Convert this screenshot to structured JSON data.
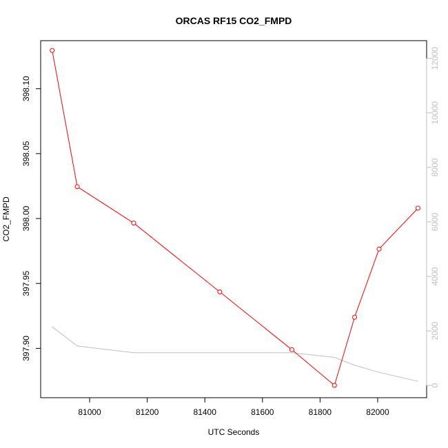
{
  "chart_data": {
    "type": "line",
    "title": "ORCAS RF15 CO2_FMPD",
    "xlabel": "UTC Seconds",
    "ylabel": "CO2_FMPD",
    "xlim": [
      80830,
      82170
    ],
    "ylim": [
      397.862,
      398.137
    ],
    "y2lim": [
      -450,
      12650
    ],
    "x_ticks": [
      81000,
      81200,
      81400,
      81600,
      81800,
      82000
    ],
    "y_ticks": [
      397.9,
      397.95,
      398.0,
      398.05,
      398.1
    ],
    "y_tick_labels": [
      "397.90",
      "397.95",
      "398.00",
      "398.05",
      "398.10"
    ],
    "y2_ticks": [
      0,
      2000,
      4000,
      6000,
      8000,
      10000,
      12000
    ],
    "grid": false,
    "series": [
      {
        "axis": "left",
        "color": "#ff0000",
        "marker": "open-circle",
        "x": [
          80870,
          80957,
          81153,
          81452,
          81702,
          81850,
          81920,
          82005,
          82140
        ],
        "y": [
          398.1295,
          398.0245,
          397.9965,
          397.9435,
          397.899,
          397.8715,
          397.924,
          397.9765,
          398.008
        ]
      },
      {
        "axis": "right",
        "color": "#bebebe",
        "marker": "none",
        "x": [
          80870,
          80957,
          81153,
          81452,
          81702,
          81850,
          81920,
          82005,
          82140
        ],
        "y": [
          2150,
          1450,
          1200,
          1200,
          1200,
          1030,
          740,
          480,
          150
        ]
      }
    ]
  }
}
